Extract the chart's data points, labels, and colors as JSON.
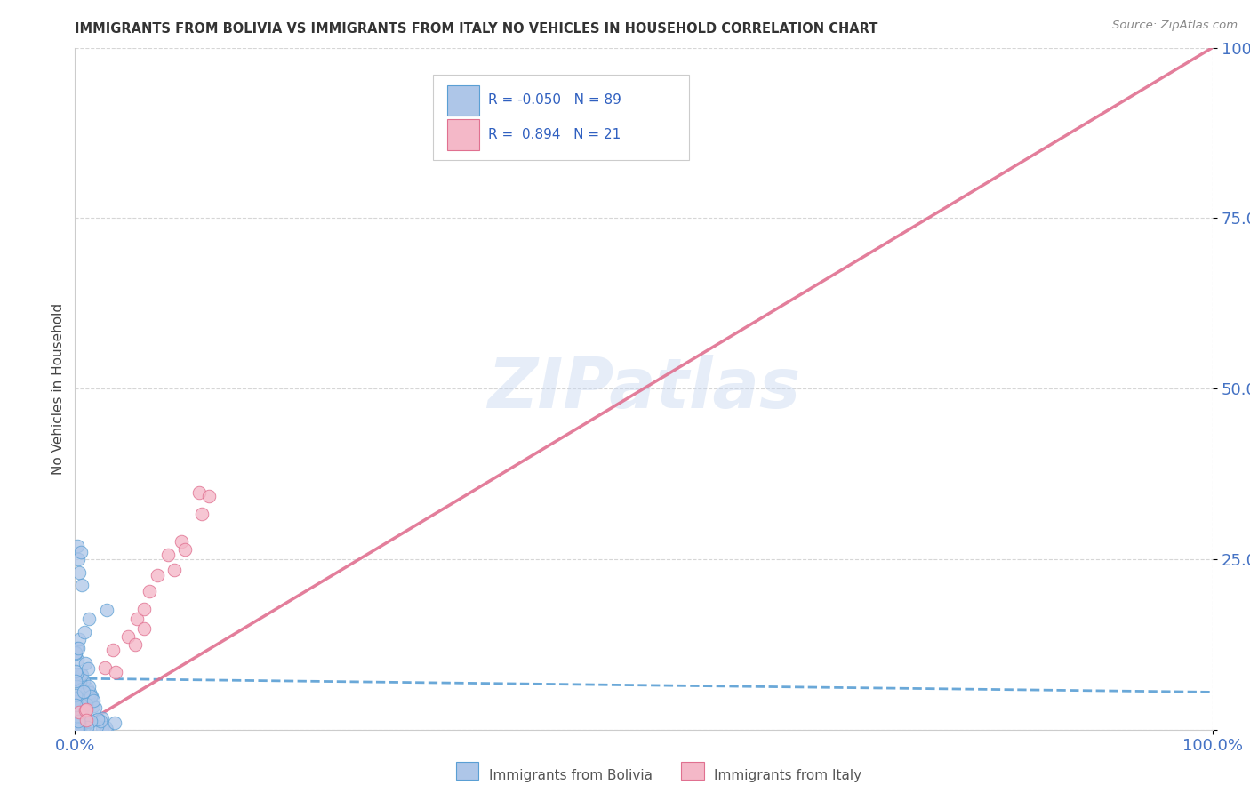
{
  "title": "IMMIGRANTS FROM BOLIVIA VS IMMIGRANTS FROM ITALY NO VEHICLES IN HOUSEHOLD CORRELATION CHART",
  "source_text": "Source: ZipAtlas.com",
  "ylabel": "No Vehicles in Household",
  "xlim": [
    0,
    1.0
  ],
  "ylim": [
    0,
    1.0
  ],
  "bolivia_color": "#aec6e8",
  "bolivia_edge_color": "#5a9fd4",
  "italy_color": "#f4b8c8",
  "italy_edge_color": "#e07090",
  "bolivia_R": -0.05,
  "bolivia_N": 89,
  "italy_R": 0.894,
  "italy_N": 21,
  "tick_label_color": "#4472c4",
  "watermark_text": "ZIPatlas",
  "background_color": "#ffffff",
  "grid_color": "#cccccc",
  "bolivia_line_color": "#5a9fd4",
  "italy_line_color": "#e07090",
  "title_color": "#333333",
  "source_color": "#888888",
  "ylabel_color": "#444444",
  "bottom_legend_color": "#555555"
}
